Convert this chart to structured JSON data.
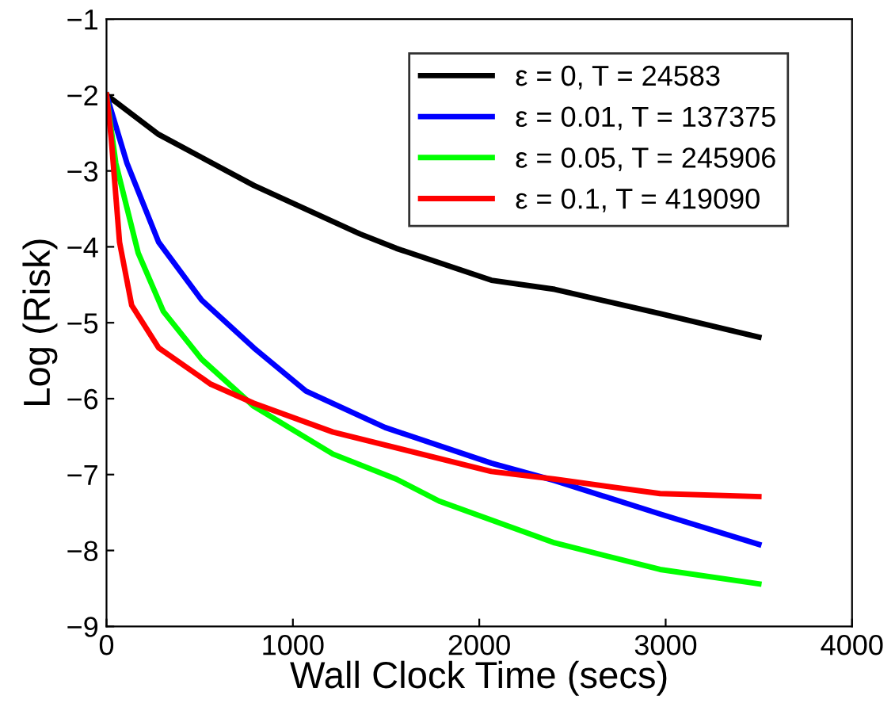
{
  "chart_data": {
    "type": "line",
    "xlabel": "Wall Clock Time (secs)",
    "ylabel": "Log (Risk)",
    "xlim": [
      0,
      4000
    ],
    "ylim": [
      -9,
      -1
    ],
    "xticks": [
      0,
      1000,
      2000,
      3000,
      4000
    ],
    "yticks": [
      -9,
      -8,
      -7,
      -6,
      -5,
      -4,
      -3,
      -2,
      -1
    ],
    "grid": false,
    "legend": "top right",
    "marker": "none",
    "line_style": "solid",
    "series": [
      {
        "name": "ε = 0, T = 24583",
        "color": "#000000",
        "x": [
          0,
          280,
          790,
          1360,
          1555,
          2065,
          2405,
          2970,
          3500
        ],
        "values": [
          -2,
          -2.52,
          -3.19,
          -3.83,
          -4.02,
          -4.44,
          -4.56,
          -4.88,
          -5.19
        ]
      },
      {
        "name": "ε = 0.01, T = 137375",
        "color": "#0000ff",
        "x": [
          0,
          110,
          280,
          510,
          790,
          1070,
          1495,
          2065,
          2405,
          2970,
          3500
        ],
        "values": [
          -2,
          -2.9,
          -3.94,
          -4.7,
          -5.33,
          -5.9,
          -6.38,
          -6.85,
          -7.08,
          -7.52,
          -7.92
        ]
      },
      {
        "name": "ε = 0.05, T = 245906",
        "color": "#00ff00",
        "x": [
          0,
          50,
          170,
          305,
          510,
          790,
          1215,
          1555,
          1785,
          2405,
          2970,
          3500
        ],
        "values": [
          -2,
          -2.9,
          -4.08,
          -4.85,
          -5.48,
          -6.1,
          -6.73,
          -7.06,
          -7.35,
          -7.9,
          -8.25,
          -8.44
        ]
      },
      {
        "name": "ε = 0.1, T = 419090",
        "color": "#ff0000",
        "x": [
          0,
          25,
          70,
          135,
          280,
          560,
          790,
          1215,
          2065,
          2405,
          2970,
          3500
        ],
        "values": [
          -2,
          -2.56,
          -3.94,
          -4.77,
          -5.33,
          -5.81,
          -6.06,
          -6.44,
          -6.96,
          -7.06,
          -7.25,
          -7.29
        ]
      }
    ]
  }
}
